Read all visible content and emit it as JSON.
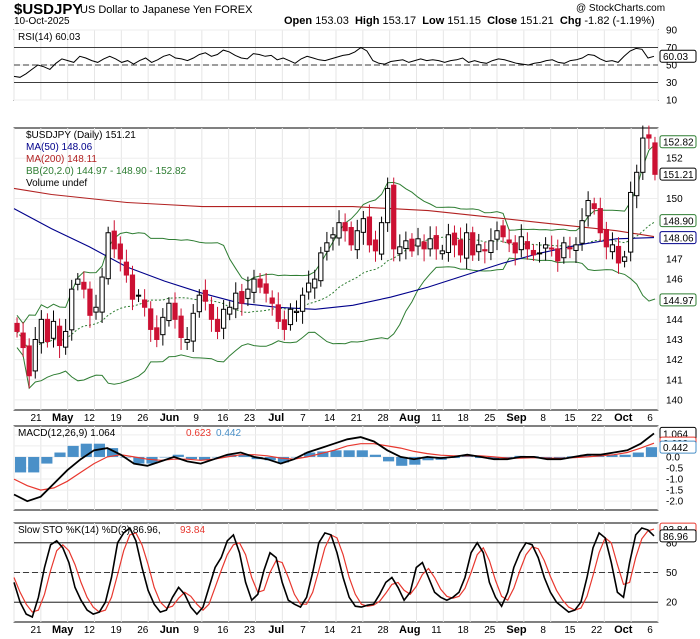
{
  "header": {
    "symbol": "$USDJPY",
    "description": "US Dollar to Japanese Yen FOREX",
    "date": "10-Oct-2025",
    "open_label": "Open",
    "open": "153.03",
    "high_label": "High",
    "high": "153.17",
    "low_label": "Low",
    "low": "151.15",
    "close_label": "Close",
    "close": "151.21",
    "chg_label": "Chg",
    "chg": "-1.82 (-1.19%)",
    "copyright": "@ StockCharts.com"
  },
  "colors": {
    "up": "#000000",
    "down": "#cc1133",
    "ma50": "#00008b",
    "ma200": "#b22222",
    "bb": "#2e7d32",
    "macd_hist": "#4a90c8",
    "signal": "#e8382f"
  },
  "chart_data": [
    {
      "type": "line",
      "panel": "rsi",
      "legend": "RSI(14) 60.03",
      "ylim": [
        10,
        90
      ],
      "yticks": [
        90,
        70,
        50,
        30,
        10
      ],
      "reference_lines": [
        70,
        30
      ],
      "last_label": "60.03",
      "series": [
        {
          "name": "RSI(14)",
          "values": [
            37,
            36,
            40,
            45,
            50,
            48,
            45,
            52,
            57,
            55,
            53,
            60,
            58,
            55,
            53,
            57,
            60,
            57,
            53,
            55,
            51,
            55,
            58,
            53,
            56,
            60,
            62,
            58,
            57,
            55,
            58,
            62,
            64,
            60,
            62,
            67,
            65,
            61,
            58,
            57,
            63,
            62,
            60,
            61,
            56,
            58,
            55,
            52,
            57,
            60,
            58,
            56,
            55,
            57,
            59,
            61,
            62,
            65,
            70,
            66,
            55,
            52,
            51,
            54,
            55,
            56,
            53,
            55,
            57,
            55,
            56,
            55,
            53,
            55,
            56,
            58,
            53,
            55,
            53,
            52,
            55,
            57,
            56,
            54,
            52,
            51,
            50,
            52,
            53,
            55,
            56,
            53,
            52,
            55,
            56,
            58,
            62,
            61,
            57,
            54,
            55,
            53,
            60,
            66,
            69,
            68,
            58,
            60
          ]
        }
      ]
    },
    {
      "type": "candlestick",
      "panel": "price",
      "legend": [
        "$USDJPY (Daily) 151.21",
        "MA(50) 148.06",
        "MA(200) 148.11",
        "BB(20,2.0) 144.97 - 148.90 - 152.82",
        "Volume undef"
      ],
      "ylim": [
        139.5,
        153.5
      ],
      "yticks": [
        152,
        150,
        149,
        147,
        146,
        145,
        144,
        143,
        142,
        141,
        140
      ],
      "last_labels": [
        "152.82",
        "151.21",
        "148.90",
        "148.06",
        "144.97"
      ],
      "xlabels": [
        "21",
        "May",
        "12",
        "19",
        "26",
        "Jun",
        "9",
        "16",
        "23",
        "Jul",
        "7",
        "14",
        "21",
        "28",
        "Aug",
        "11",
        "18",
        "25",
        "Sep",
        "8",
        "15",
        "22",
        "Oct",
        "6"
      ],
      "close": [
        143.4,
        142.6,
        141.2,
        143.0,
        144.0,
        142.9,
        143.9,
        142.7,
        143.4,
        145.5,
        146.0,
        145.5,
        144.2,
        144.6,
        146.1,
        148.3,
        147.5,
        147.0,
        146.2,
        145.0,
        145.2,
        144.6,
        143.5,
        143.0,
        144.1,
        144.8,
        144.0,
        143.1,
        143.0,
        144.3,
        145.2,
        144.9,
        144.0,
        143.4,
        144.5,
        144.6,
        145.3,
        144.8,
        145.5,
        146.0,
        145.6,
        145.3,
        144.8,
        143.9,
        143.5,
        144.5,
        144.4,
        145.2,
        145.8,
        146.0,
        147.3,
        147.8,
        148.2,
        148.8,
        148.4,
        147.7,
        148.4,
        149.0,
        147.7,
        147.4,
        148.8,
        150.5,
        147.5,
        147.6,
        147.9,
        147.4,
        148.0,
        147.5,
        148.0,
        147.5,
        147.4,
        148.2,
        147.7,
        147.2,
        148.3,
        147.2,
        147.7,
        147.4,
        147.9,
        148.4,
        148.1,
        147.8,
        147.3,
        148.1,
        147.5,
        147.2,
        147.3,
        147.7,
        147.5,
        146.9,
        147.8,
        147.5,
        147.7,
        148.9,
        149.9,
        149.5,
        148.3,
        147.6,
        147.7,
        146.8,
        147.1,
        150.3,
        151.3,
        153.0,
        153.0,
        151.2
      ],
      "series": [
        {
          "name": "MA(50)",
          "values": [
            149.5,
            148.5,
            147.6,
            146.6,
            145.9,
            145.3,
            144.8,
            144.6,
            144.5,
            144.7,
            145.1,
            145.6,
            146.2,
            146.8,
            147.3,
            147.7,
            148.0,
            148.06
          ]
        },
        {
          "name": "MA(200)",
          "values": [
            150.5,
            150.2,
            150.0,
            149.8,
            149.7,
            149.6,
            149.6,
            149.6,
            149.6,
            149.6,
            149.5,
            149.4,
            149.2,
            149.0,
            148.8,
            148.6,
            148.4,
            148.11
          ]
        }
      ]
    },
    {
      "type": "line",
      "panel": "macd",
      "legend": [
        "MACD(12,26,9) 1.064",
        "0.623",
        "0.442"
      ],
      "ylim": [
        -2.4,
        1.4
      ],
      "yticks": [
        1.0,
        0.5,
        0.0,
        -0.5,
        -1.0,
        -1.5,
        -2.0
      ],
      "last_labels": [
        "1.064",
        "0.623",
        "0.442"
      ],
      "series": [
        {
          "name": "MACD(12,26,9)",
          "values": [
            -1.7,
            -2.0,
            -1.8,
            -1.2,
            -0.6,
            -0.1,
            0.3,
            0.4,
            0.1,
            -0.3,
            -0.4,
            -0.2,
            0.0,
            -0.2,
            -0.3,
            -0.1,
            0.1,
            0.2,
            0.0,
            -0.1,
            -0.3,
            -0.1,
            0.2,
            0.4,
            0.6,
            0.8,
            0.9,
            0.7,
            0.3,
            0.0,
            -0.1,
            0.0,
            -0.05,
            0.0,
            0.1,
            0.0,
            -0.1,
            -0.1,
            0.0,
            0.0,
            -0.1,
            -0.1,
            0.0,
            0.1,
            0.1,
            0.2,
            0.3,
            0.6,
            1.064
          ]
        },
        {
          "name": "Signal",
          "values": [
            -1.0,
            -1.3,
            -1.5,
            -1.4,
            -1.1,
            -0.7,
            -0.3,
            0.0,
            0.1,
            0.0,
            -0.1,
            -0.15,
            -0.1,
            -0.1,
            -0.15,
            -0.1,
            0.0,
            0.1,
            0.1,
            0.05,
            -0.05,
            -0.1,
            0.0,
            0.15,
            0.3,
            0.5,
            0.6,
            0.6,
            0.5,
            0.4,
            0.25,
            0.15,
            0.08,
            0.05,
            0.05,
            0.05,
            0.0,
            -0.05,
            -0.05,
            -0.03,
            -0.05,
            -0.06,
            -0.03,
            0.0,
            0.05,
            0.1,
            0.2,
            0.4,
            0.623
          ]
        },
        {
          "name": "Histogram",
          "values": [
            -0.7,
            -0.7,
            -0.3,
            0.2,
            0.5,
            0.6,
            0.6,
            0.4,
            0.0,
            -0.3,
            -0.3,
            0.0,
            0.1,
            -0.1,
            -0.15,
            0.0,
            0.1,
            0.1,
            -0.1,
            -0.15,
            -0.25,
            0.0,
            0.2,
            0.25,
            0.3,
            0.3,
            0.3,
            0.1,
            -0.2,
            -0.4,
            -0.35,
            -0.15,
            -0.13,
            -0.05,
            0.05,
            -0.05,
            -0.1,
            -0.05,
            0.05,
            0.03,
            -0.05,
            -0.04,
            0.03,
            0.1,
            0.05,
            0.1,
            0.1,
            0.2,
            0.442
          ]
        }
      ]
    },
    {
      "type": "line",
      "panel": "stochastic",
      "legend": [
        "Slow STO %K(14) %D(3) 86.96,",
        "93.84"
      ],
      "ylim": [
        0,
        100
      ],
      "yticks": [
        80,
        50,
        20
      ],
      "reference_lines": [
        80,
        50,
        20
      ],
      "last_labels": [
        "93.84",
        "86.96"
      ],
      "series": [
        {
          "name": "%K(14)",
          "values": [
            40,
            20,
            8,
            5,
            25,
            55,
            78,
            82,
            75,
            60,
            35,
            22,
            12,
            8,
            10,
            20,
            45,
            80,
            90,
            95,
            82,
            55,
            32,
            18,
            10,
            12,
            25,
            35,
            28,
            15,
            8,
            15,
            35,
            55,
            65,
            82,
            88,
            70,
            40,
            22,
            28,
            52,
            70,
            65,
            40,
            22,
            18,
            15,
            25,
            50,
            80,
            90,
            88,
            70,
            45,
            25,
            16,
            15,
            17,
            18,
            28,
            40,
            45,
            35,
            22,
            30,
            55,
            60,
            45,
            30,
            25,
            22,
            25,
            30,
            45,
            70,
            80,
            70,
            40,
            25,
            16,
            30,
            55,
            70,
            80,
            78,
            65,
            45,
            30,
            20,
            15,
            10,
            12,
            20,
            45,
            75,
            90,
            85,
            60,
            30,
            25,
            60,
            88,
            95,
            93,
            86.96
          ]
        },
        {
          "name": "%D(3)",
          "values": [
            45,
            30,
            18,
            10,
            12,
            28,
            52,
            72,
            78,
            72,
            58,
            40,
            25,
            15,
            10,
            12,
            25,
            48,
            72,
            88,
            90,
            78,
            58,
            35,
            20,
            14,
            16,
            24,
            30,
            26,
            18,
            12,
            18,
            35,
            52,
            68,
            78,
            80,
            68,
            45,
            30,
            32,
            50,
            62,
            60,
            45,
            28,
            18,
            18,
            30,
            52,
            75,
            88,
            85,
            68,
            45,
            28,
            18,
            16,
            17,
            21,
            29,
            38,
            40,
            32,
            28,
            36,
            48,
            54,
            45,
            33,
            26,
            24,
            26,
            34,
            50,
            68,
            75,
            62,
            42,
            26,
            22,
            34,
            52,
            68,
            76,
            74,
            62,
            46,
            32,
            22,
            15,
            12,
            14,
            26,
            47,
            70,
            85,
            80,
            58,
            38,
            40,
            65,
            84,
            92,
            93.84
          ]
        }
      ]
    }
  ]
}
